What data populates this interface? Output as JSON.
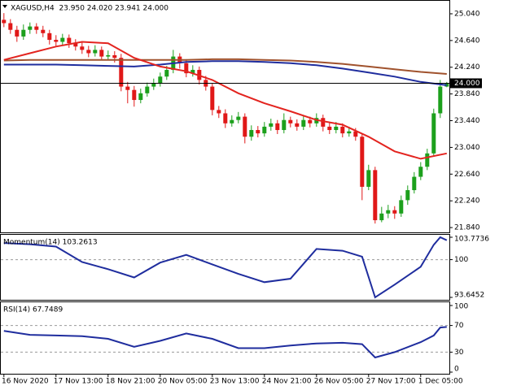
{
  "chart_data": [
    {
      "type": "candlestick",
      "title": "XAGUSD,H4  23.950 24.020 23.941 24.000",
      "open": [
        24.95,
        24.9,
        24.8,
        24.7,
        24.8,
        24.85,
        24.8,
        24.75,
        24.65,
        24.62,
        24.68,
        24.6,
        24.55,
        24.5,
        24.45,
        24.5,
        24.4,
        24.42,
        24.38,
        23.95,
        23.9,
        23.75,
        23.85,
        23.95,
        24.0,
        24.1,
        24.2,
        24.4,
        24.3,
        24.15,
        24.2,
        24.05,
        23.95,
        23.6,
        23.55,
        23.4,
        23.45,
        23.5,
        23.2,
        23.3,
        23.25,
        23.35,
        23.4,
        23.3,
        23.45,
        23.4,
        23.35,
        23.45,
        23.4,
        23.48,
        23.35,
        23.3,
        23.35,
        23.25,
        23.28,
        23.2,
        22.45,
        22.7,
        21.95,
        22.05,
        22.1,
        22.05,
        22.25,
        22.4,
        22.6,
        22.75,
        22.95,
        23.55,
        23.95
      ],
      "high": [
        25.05,
        24.96,
        24.86,
        24.88,
        24.91,
        24.9,
        24.86,
        24.8,
        24.72,
        24.74,
        24.73,
        24.66,
        24.61,
        24.56,
        24.57,
        24.55,
        24.49,
        24.48,
        24.44,
        24.02,
        23.96,
        23.92,
        24.01,
        24.07,
        24.16,
        24.26,
        24.5,
        24.45,
        24.36,
        24.27,
        24.25,
        24.11,
        24.0,
        23.66,
        23.61,
        23.52,
        23.57,
        23.55,
        23.37,
        23.36,
        23.42,
        23.47,
        23.45,
        23.55,
        23.5,
        23.46,
        23.52,
        23.5,
        23.55,
        23.53,
        23.41,
        23.42,
        23.4,
        23.35,
        23.33,
        23.25,
        22.78,
        22.75,
        22.15,
        22.18,
        22.16,
        22.32,
        22.47,
        22.67,
        22.82,
        23.02,
        23.62,
        24.05,
        24.02
      ],
      "low": [
        24.84,
        24.74,
        24.62,
        24.65,
        24.74,
        24.74,
        24.69,
        24.58,
        24.56,
        24.57,
        24.53,
        24.49,
        24.44,
        24.39,
        24.4,
        24.34,
        24.35,
        24.31,
        23.88,
        23.7,
        23.65,
        23.7,
        23.8,
        23.9,
        23.95,
        24.05,
        24.15,
        24.22,
        24.09,
        24.1,
        23.98,
        23.89,
        23.52,
        23.48,
        23.33,
        23.35,
        23.4,
        23.1,
        23.14,
        23.19,
        23.2,
        23.29,
        23.24,
        23.25,
        23.34,
        23.29,
        23.3,
        23.34,
        23.35,
        23.28,
        23.24,
        23.25,
        23.19,
        23.2,
        23.14,
        22.25,
        22.4,
        21.9,
        21.92,
        21.98,
        21.97,
        22.0,
        22.18,
        22.35,
        22.55,
        22.7,
        22.9,
        23.48,
        23.941
      ],
      "close": [
        24.9,
        24.8,
        24.7,
        24.8,
        24.85,
        24.8,
        24.75,
        24.65,
        24.62,
        24.68,
        24.6,
        24.55,
        24.5,
        24.45,
        24.5,
        24.4,
        24.42,
        24.38,
        23.95,
        23.9,
        23.75,
        23.85,
        23.95,
        24.0,
        24.1,
        24.2,
        24.4,
        24.3,
        24.15,
        24.2,
        24.05,
        23.95,
        23.6,
        23.55,
        23.4,
        23.45,
        23.5,
        23.2,
        23.3,
        23.25,
        23.35,
        23.4,
        23.3,
        23.45,
        23.4,
        23.35,
        23.45,
        23.4,
        23.48,
        23.35,
        23.3,
        23.35,
        23.25,
        23.28,
        23.2,
        22.45,
        22.7,
        21.95,
        22.05,
        22.1,
        22.05,
        22.25,
        22.4,
        22.6,
        22.75,
        22.95,
        23.55,
        23.95,
        24.0
      ],
      "up_color": "#1ca01c",
      "down_color": "#e01818",
      "series": [
        {
          "color": "#1f2d9e",
          "x": [
            0,
            4,
            8,
            12,
            16,
            20,
            24,
            28,
            32,
            36,
            40,
            44,
            48,
            52,
            56,
            60,
            64,
            68
          ],
          "values": [
            24.28,
            24.28,
            24.28,
            24.27,
            24.26,
            24.25,
            24.28,
            24.32,
            24.33,
            24.33,
            24.32,
            24.3,
            24.27,
            24.22,
            24.16,
            24.1,
            24.02,
            23.97
          ]
        },
        {
          "color": "#a0522d",
          "x": [
            0,
            4,
            8,
            12,
            16,
            20,
            24,
            28,
            32,
            36,
            40,
            44,
            48,
            52,
            56,
            60,
            64,
            68
          ],
          "values": [
            24.34,
            24.35,
            24.35,
            24.35,
            24.35,
            24.35,
            24.35,
            24.35,
            24.36,
            24.36,
            24.35,
            24.34,
            24.32,
            24.29,
            24.25,
            24.21,
            24.17,
            24.14
          ]
        },
        {
          "color": "#e3241f",
          "x": [
            0,
            4,
            8,
            12,
            16,
            20,
            24,
            28,
            32,
            36,
            40,
            44,
            48,
            52,
            56,
            60,
            64,
            68
          ],
          "values": [
            24.35,
            24.45,
            24.55,
            24.62,
            24.6,
            24.38,
            24.25,
            24.18,
            24.05,
            23.85,
            23.7,
            23.58,
            23.45,
            23.38,
            23.2,
            22.98,
            22.87,
            22.95
          ]
        }
      ],
      "current_price": {
        "value": 24.0,
        "label": "24.000"
      },
      "xlim": [
        -0.6,
        68.4
      ],
      "ylim": [
        21.78,
        25.21
      ],
      "yticks": [
        {
          "value": 21.84,
          "label": "21.840"
        },
        {
          "value": 22.24,
          "label": "22.240"
        },
        {
          "value": 22.64,
          "label": "22.640"
        },
        {
          "value": 23.04,
          "label": "23.040"
        },
        {
          "value": 23.44,
          "label": "23.440"
        },
        {
          "value": 23.84,
          "label": "23.840"
        },
        {
          "value": 24.24,
          "label": "24.240"
        },
        {
          "value": 24.64,
          "label": "24.640"
        },
        {
          "value": 25.04,
          "label": "25.040"
        }
      ]
    },
    {
      "type": "line",
      "title": "Momentum(14) 103.2613",
      "series": [
        {
          "color": "#1f2d9e",
          "x": [
            0,
            4,
            8,
            12,
            16,
            20,
            24,
            28,
            32,
            36,
            40,
            44,
            48,
            52,
            55,
            57,
            60,
            64,
            66,
            67,
            68
          ],
          "values": [
            102.8,
            102.6,
            102.2,
            99.6,
            98.4,
            97.0,
            99.5,
            100.8,
            99.2,
            97.6,
            96.2,
            96.8,
            101.8,
            101.5,
            100.5,
            93.6452,
            95.8,
            98.8,
            102.5,
            103.7736,
            103.2613
          ]
        }
      ],
      "xlim": [
        -0.6,
        68.4
      ],
      "ylim": [
        93.6452,
        103.7736
      ],
      "yticks": [
        93.6452,
        100,
        103.7736
      ],
      "levels": [
        100
      ]
    },
    {
      "type": "line",
      "title": "RSI(14) 67.7489",
      "series": [
        {
          "color": "#1f2d9e",
          "x": [
            0,
            4,
            8,
            12,
            16,
            20,
            24,
            28,
            32,
            36,
            40,
            44,
            48,
            52,
            55,
            57,
            60,
            64,
            66,
            67,
            68
          ],
          "values": [
            62,
            56,
            55,
            54,
            50,
            38,
            47,
            58,
            50,
            36,
            36,
            40,
            43,
            44,
            42,
            22,
            30,
            45,
            55,
            67,
            67.7489
          ]
        }
      ],
      "xlim": [
        -0.6,
        68.4
      ],
      "ylim": [
        0,
        100
      ],
      "yticks": [
        0,
        30,
        70,
        100
      ],
      "levels": [
        30,
        70
      ],
      "xticks": [
        {
          "value": 0,
          "label": "16 Nov 2020"
        },
        {
          "value": 8,
          "label": "17 Nov 13:00"
        },
        {
          "value": 16,
          "label": "18 Nov 21:00"
        },
        {
          "value": 24,
          "label": "20 Nov 05:00"
        },
        {
          "value": 32,
          "label": "23 Nov 13:00"
        },
        {
          "value": 40,
          "label": "24 Nov 21:00"
        },
        {
          "value": 48,
          "label": "26 Nov 05:00"
        },
        {
          "value": 56,
          "label": "27 Nov 17:00"
        },
        {
          "value": 64,
          "label": "1 Dec 05:00"
        }
      ]
    }
  ]
}
